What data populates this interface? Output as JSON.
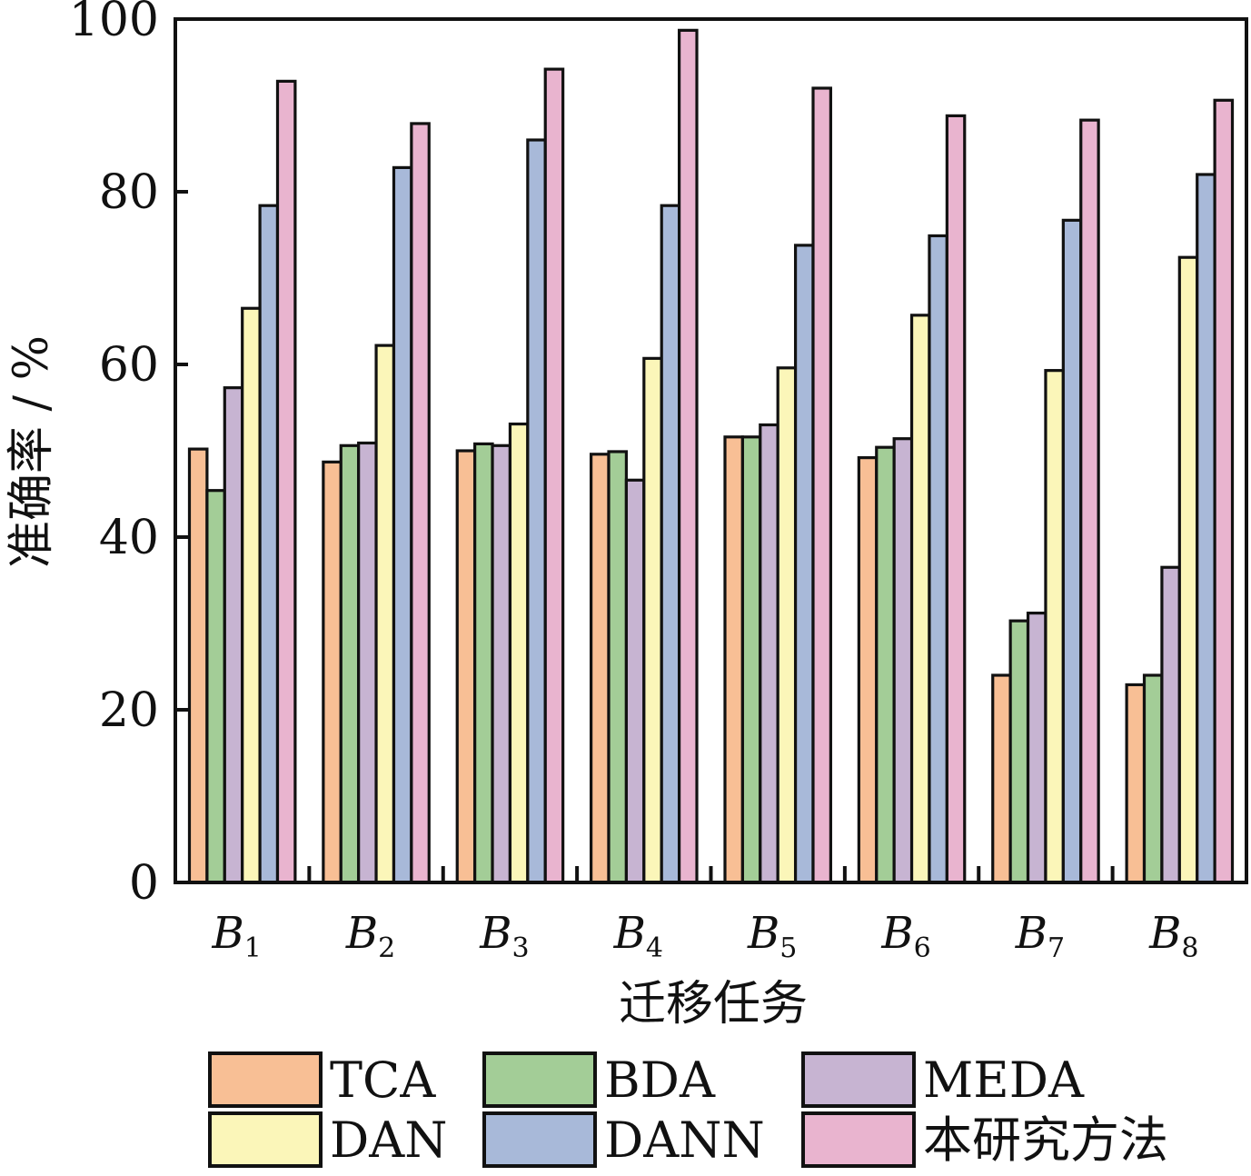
{
  "chart_data": {
    "type": "bar",
    "title": "",
    "xlabel": "迁移任务",
    "ylabel": "准确率 / %",
    "ylim": [
      0,
      100
    ],
    "yticks": [
      0,
      20,
      40,
      60,
      80,
      100
    ],
    "grid": false,
    "legend_position": "bottom",
    "categories": [
      "B1",
      "B2",
      "B3",
      "B4",
      "B5",
      "B6",
      "B7",
      "B8"
    ],
    "category_labels": [
      {
        "main": "B",
        "sub": "1"
      },
      {
        "main": "B",
        "sub": "2"
      },
      {
        "main": "B",
        "sub": "3"
      },
      {
        "main": "B",
        "sub": "4"
      },
      {
        "main": "B",
        "sub": "5"
      },
      {
        "main": "B",
        "sub": "6"
      },
      {
        "main": "B",
        "sub": "7"
      },
      {
        "main": "B",
        "sub": "8"
      }
    ],
    "series": [
      {
        "name": "TCA",
        "color": "#f8bf95",
        "values": [
          50.2,
          48.7,
          50.0,
          49.6,
          51.6,
          49.2,
          24.0,
          22.9
        ]
      },
      {
        "name": "BDA",
        "color": "#a3cd97",
        "values": [
          45.4,
          50.6,
          50.8,
          49.9,
          51.6,
          50.4,
          30.3,
          24.0
        ]
      },
      {
        "name": "MEDA",
        "color": "#c7b4d2",
        "values": [
          57.3,
          50.9,
          50.6,
          46.6,
          53.0,
          51.4,
          31.2,
          36.5
        ]
      },
      {
        "name": "DAN",
        "color": "#fbf6b9",
        "values": [
          66.5,
          62.2,
          53.1,
          60.7,
          59.6,
          65.7,
          59.3,
          72.4
        ]
      },
      {
        "name": "DANN",
        "color": "#a8b9d9",
        "values": [
          78.4,
          82.8,
          86.0,
          78.4,
          73.8,
          74.9,
          76.7,
          82.0
        ]
      },
      {
        "name": "本研究方法",
        "color": "#e9b4cf",
        "values": [
          92.8,
          87.9,
          94.2,
          98.7,
          92.0,
          88.8,
          88.3,
          90.6
        ]
      }
    ]
  }
}
